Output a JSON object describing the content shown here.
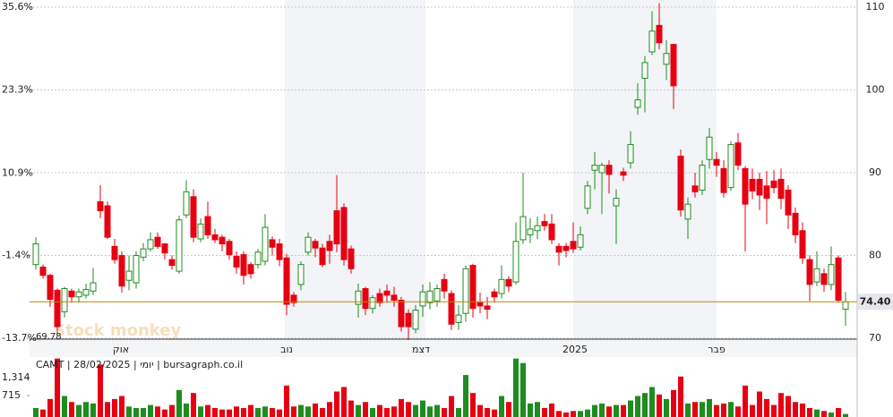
{
  "chart_data": [
    {
      "type": "candlestick",
      "open": [
        78.9,
        78.6,
        77.6,
        75.8,
        73.2,
        75.7,
        75.0,
        75.2,
        75.7,
        86.5,
        86.0,
        81.1,
        80.0,
        77.0,
        76.7,
        79.8,
        80.8,
        82.2,
        81.4,
        79.5,
        78.1,
        84.9,
        87.1,
        82.0,
        84.7,
        82.5,
        82.2,
        81.7,
        79.9,
        80.1,
        78.9,
        78.9,
        79.3,
        81.9,
        81.4,
        79.7,
        75.2,
        76.5,
        80.4,
        81.7,
        80.9,
        81.7,
        85.4,
        85.8,
        80.8,
        74.1,
        76.0,
        73.6,
        75.4,
        75.7,
        75.2,
        74.6,
        73.0,
        71.1,
        73.9,
        74.3,
        74.5,
        77.1,
        75.4,
        71.9,
        73.0,
        78.8,
        74.3,
        73.9,
        75.6,
        75.4,
        77.1,
        76.8,
        81.9,
        82.5,
        83.0,
        84.1,
        83.8,
        81.1,
        81.1,
        81.7,
        81.0,
        85.7,
        90.3,
        90.0,
        90.9,
        86.0,
        90.1,
        91.2,
        97.9,
        101.4,
        104.6,
        107.8,
        103.1,
        105.5,
        92.0,
        84.4,
        88.4,
        87.9,
        91.6,
        91.6,
        90.5,
        88.2,
        93.6,
        90.5,
        89.2,
        89.2,
        88.4,
        89.0,
        89.2,
        87.9,
        85.1,
        83.0,
        79.5,
        76.8,
        77.8,
        76.5,
        79.7,
        73.5
      ],
      "high": [
        82.2,
        78.9,
        77.8,
        76.0,
        76.2,
        76.0,
        76.0,
        76.6,
        78.5,
        88.5,
        86.5,
        82.0,
        80.5,
        80.0,
        80.5,
        81.5,
        82.8,
        82.8,
        81.5,
        80.0,
        84.8,
        89.1,
        88.0,
        84.5,
        86.5,
        83.2,
        82.5,
        82.0,
        80.5,
        80.5,
        79.2,
        80.8,
        85.0,
        82.3,
        82.0,
        80.2,
        75.6,
        79.3,
        82.8,
        82.0,
        81.4,
        82.5,
        89.7,
        86.3,
        81.2,
        76.6,
        76.2,
        75.2,
        76.0,
        76.5,
        76.2,
        75.0,
        73.5,
        74.0,
        76.5,
        76.8,
        76.5,
        77.8,
        75.8,
        74.0,
        78.8,
        79.0,
        75.5,
        75.0,
        76.0,
        78.8,
        77.5,
        84.0,
        90.0,
        84.5,
        84.7,
        85.0,
        85.0,
        81.5,
        81.5,
        84.0,
        83.5,
        89.0,
        92.5,
        91.2,
        91.5,
        88.0,
        90.6,
        95.0,
        100.8,
        104.1,
        109.5,
        110.5,
        106.0,
        105.5,
        92.8,
        87.0,
        90.0,
        91.5,
        95.4,
        92.5,
        91.5,
        93.8,
        94.8,
        90.8,
        90.5,
        90.0,
        90.2,
        90.3,
        90.5,
        88.5,
        85.8,
        84.0,
        80.0,
        80.5,
        78.4,
        81.1,
        80.0,
        75.6
      ],
      "low": [
        78.3,
        77.2,
        73.8,
        70.6,
        72.5,
        74.3,
        74.3,
        74.8,
        75.2,
        84.5,
        82.0,
        79.0,
        75.5,
        75.8,
        76.0,
        79.3,
        80.5,
        80.8,
        79.5,
        78.3,
        77.8,
        84.5,
        81.6,
        81.6,
        82.0,
        81.5,
        80.5,
        79.5,
        77.8,
        76.5,
        77.2,
        78.4,
        78.8,
        80.0,
        78.7,
        72.8,
        73.8,
        75.8,
        80.0,
        79.8,
        78.6,
        79.0,
        80.4,
        78.8,
        77.8,
        72.5,
        72.8,
        73.0,
        73.8,
        74.3,
        73.8,
        70.8,
        69.78,
        70.6,
        72.6,
        73.5,
        73.8,
        74.8,
        71.0,
        71.0,
        72.0,
        72.5,
        73.0,
        72.3,
        74.3,
        74.8,
        75.6,
        76.5,
        81.4,
        81.5,
        82.0,
        83.0,
        81.4,
        78.8,
        79.8,
        80.3,
        80.6,
        85.0,
        88.0,
        85.0,
        87.5,
        81.4,
        89.0,
        90.5,
        97.0,
        97.3,
        104.2,
        104.9,
        101.2,
        97.7,
        84.7,
        82.0,
        87.0,
        87.3,
        90.5,
        89.5,
        87.0,
        87.8,
        90.3,
        80.5,
        86.8,
        85.5,
        83.8,
        87.5,
        85.6,
        83.2,
        81.5,
        79.0,
        74.5,
        76.3,
        75.6,
        75.8,
        74.3,
        71.5
      ],
      "close": [
        81.4,
        77.6,
        74.7,
        71.4,
        76.0,
        75.0,
        75.6,
        75.9,
        76.7,
        85.4,
        82.2,
        79.5,
        76.3,
        78.1,
        80.0,
        80.8,
        81.9,
        81.1,
        80.3,
        78.8,
        84.3,
        87.7,
        82.2,
        83.8,
        82.5,
        81.9,
        81.4,
        80.1,
        78.6,
        77.6,
        77.8,
        80.4,
        83.4,
        81.0,
        79.5,
        74.1,
        74.3,
        78.9,
        82.2,
        80.9,
        78.9,
        80.6,
        81.4,
        79.5,
        78.4,
        75.7,
        73.6,
        74.9,
        74.3,
        75.2,
        74.6,
        71.4,
        71.4,
        73.4,
        75.6,
        75.7,
        76.0,
        75.7,
        71.7,
        72.8,
        78.4,
        73.6,
        73.9,
        73.5,
        75.0,
        77.1,
        76.3,
        81.7,
        84.7,
        83.2,
        83.6,
        83.6,
        81.9,
        80.4,
        80.6,
        80.8,
        82.5,
        88.4,
        90.9,
        90.9,
        89.8,
        86.9,
        89.7,
        93.4,
        98.8,
        103.3,
        107.1,
        105.7,
        104.4,
        100.5,
        85.5,
        86.2,
        87.7,
        90.9,
        94.3,
        90.9,
        87.6,
        93.4,
        90.9,
        86.2,
        87.8,
        87.3,
        86.9,
        88.2,
        86.9,
        84.9,
        82.5,
        79.7,
        76.5,
        78.4,
        76.5,
        78.9,
        74.6,
        74.4
      ],
      "up_color": "#1e8c1e",
      "down_color": "#e60012",
      "ylim": [
        70,
        110
      ],
      "yticks": [
        70,
        80,
        90,
        100,
        110
      ],
      "y2lim": [
        -13.7,
        35.6
      ],
      "y2ticks": [
        {
          "value": 35.6,
          "label": "35.6%"
        },
        {
          "value": 23.3,
          "label": "23.3%"
        },
        {
          "value": 10.9,
          "label": "10.9%"
        },
        {
          "value": -1.4,
          "label": "-1.4%"
        },
        {
          "value": -13.7,
          "label": "-13.7%"
        }
      ],
      "grid": true,
      "xlabels": [
        "אוק",
        "נוב",
        "דצמ",
        "2025",
        "פבר"
      ],
      "low_label": "69.78",
      "last_price_label": "74.40",
      "last_price_color": "#b8860b",
      "watermark": "Stock monkey"
    },
    {
      "type": "volume",
      "title": "CAMT | 28/02/2025 | יומי | bursagraph.co.il",
      "values": [
        300,
        250,
        600,
        1950,
        700,
        500,
        400,
        500,
        450,
        1750,
        500,
        600,
        700,
        350,
        300,
        300,
        400,
        350,
        250,
        400,
        900,
        450,
        800,
        350,
        400,
        300,
        250,
        250,
        350,
        300,
        400,
        300,
        350,
        300,
        250,
        1050,
        350,
        400,
        350,
        450,
        300,
        500,
        850,
        1000,
        550,
        400,
        500,
        300,
        400,
        300,
        350,
        600,
        500,
        400,
        550,
        350,
        400,
        300,
        700,
        300,
        1400,
        800,
        400,
        300,
        250,
        700,
        500,
        1950,
        1800,
        450,
        500,
        300,
        450,
        200,
        150,
        200,
        200,
        250,
        400,
        450,
        350,
        400,
        400,
        550,
        700,
        800,
        1000,
        750,
        600,
        900,
        1350,
        450,
        500,
        500,
        600,
        400,
        450,
        500,
        350,
        1050,
        400,
        850,
        600,
        400,
        800,
        700,
        500,
        450,
        300,
        250,
        200,
        150,
        300,
        100
      ],
      "ylim": [
        0,
        2000
      ],
      "yticks": [
        {
          "value": 1314,
          "label": "1,314"
        },
        715
      ]
    }
  ]
}
